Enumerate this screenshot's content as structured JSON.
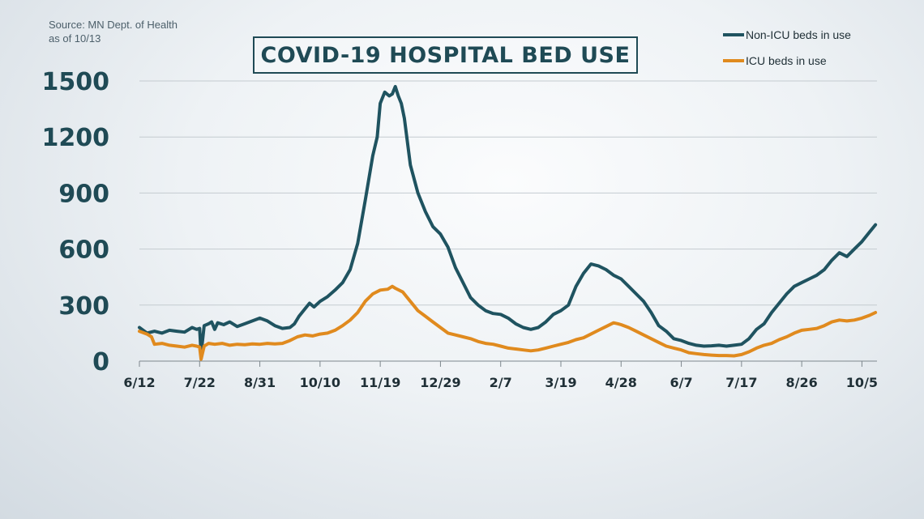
{
  "source": {
    "line1": "Source: MN Dept. of Health",
    "line2": "as of 10/13"
  },
  "title": "COVID-19 HOSPITAL BED USE",
  "colors": {
    "non_icu": "#1f5360",
    "icu": "#e08a1e",
    "title": "#1f4a55",
    "grid": "#c4cbd0"
  },
  "legend": [
    {
      "label": "Non-ICU beds in use",
      "color": "#1f5360"
    },
    {
      "label": "ICU beds in use",
      "color": "#e08a1e"
    }
  ],
  "chart_data": {
    "type": "line",
    "title": "COVID-19 HOSPITAL BED USE",
    "xlabel": "",
    "ylabel": "",
    "ylim": [
      0,
      1500
    ],
    "xlim": [
      0,
      490
    ],
    "yticks": [
      0,
      300,
      600,
      900,
      1200,
      1500
    ],
    "xticks": [
      {
        "x": 0,
        "label": "6/12"
      },
      {
        "x": 40,
        "label": "7/22"
      },
      {
        "x": 80,
        "label": "8/31"
      },
      {
        "x": 120,
        "label": "10/10"
      },
      {
        "x": 160,
        "label": "11/19"
      },
      {
        "x": 200,
        "label": "12/29"
      },
      {
        "x": 240,
        "label": "2/7"
      },
      {
        "x": 280,
        "label": "3/19"
      },
      {
        "x": 320,
        "label": "4/28"
      },
      {
        "x": 360,
        "label": "6/7"
      },
      {
        "x": 400,
        "label": "7/17"
      },
      {
        "x": 440,
        "label": "8/26"
      },
      {
        "x": 480,
        "label": "10/5"
      }
    ],
    "grid": true,
    "legend_position": "top-right",
    "x_note": "x = days since 6/12",
    "series": [
      {
        "name": "Non-ICU beds in use",
        "color": "#1f5360",
        "points": [
          [
            0,
            180
          ],
          [
            5,
            150
          ],
          [
            10,
            160
          ],
          [
            15,
            150
          ],
          [
            20,
            165
          ],
          [
            25,
            160
          ],
          [
            30,
            155
          ],
          [
            35,
            180
          ],
          [
            38,
            170
          ],
          [
            40,
            175
          ],
          [
            41,
            40
          ],
          [
            43,
            190
          ],
          [
            46,
            200
          ],
          [
            48,
            210
          ],
          [
            50,
            170
          ],
          [
            52,
            205
          ],
          [
            56,
            195
          ],
          [
            60,
            210
          ],
          [
            65,
            185
          ],
          [
            70,
            200
          ],
          [
            75,
            215
          ],
          [
            80,
            230
          ],
          [
            85,
            215
          ],
          [
            90,
            190
          ],
          [
            95,
            175
          ],
          [
            100,
            180
          ],
          [
            103,
            200
          ],
          [
            106,
            240
          ],
          [
            110,
            280
          ],
          [
            113,
            310
          ],
          [
            116,
            290
          ],
          [
            120,
            320
          ],
          [
            125,
            345
          ],
          [
            130,
            380
          ],
          [
            135,
            420
          ],
          [
            140,
            490
          ],
          [
            145,
            630
          ],
          [
            150,
            860
          ],
          [
            155,
            1100
          ],
          [
            158,
            1200
          ],
          [
            160,
            1380
          ],
          [
            163,
            1440
          ],
          [
            166,
            1420
          ],
          [
            168,
            1430
          ],
          [
            170,
            1470
          ],
          [
            172,
            1420
          ],
          [
            174,
            1380
          ],
          [
            176,
            1300
          ],
          [
            180,
            1050
          ],
          [
            185,
            900
          ],
          [
            190,
            800
          ],
          [
            195,
            720
          ],
          [
            200,
            680
          ],
          [
            205,
            610
          ],
          [
            210,
            500
          ],
          [
            215,
            420
          ],
          [
            220,
            340
          ],
          [
            225,
            300
          ],
          [
            230,
            270
          ],
          [
            235,
            255
          ],
          [
            240,
            250
          ],
          [
            245,
            230
          ],
          [
            250,
            200
          ],
          [
            255,
            180
          ],
          [
            260,
            170
          ],
          [
            265,
            180
          ],
          [
            270,
            210
          ],
          [
            275,
            250
          ],
          [
            280,
            270
          ],
          [
            285,
            300
          ],
          [
            290,
            400
          ],
          [
            295,
            470
          ],
          [
            300,
            520
          ],
          [
            305,
            510
          ],
          [
            310,
            490
          ],
          [
            315,
            460
          ],
          [
            320,
            440
          ],
          [
            325,
            400
          ],
          [
            330,
            360
          ],
          [
            335,
            320
          ],
          [
            340,
            260
          ],
          [
            345,
            190
          ],
          [
            350,
            160
          ],
          [
            355,
            120
          ],
          [
            360,
            110
          ],
          [
            365,
            95
          ],
          [
            370,
            85
          ],
          [
            375,
            80
          ],
          [
            380,
            82
          ],
          [
            385,
            85
          ],
          [
            390,
            80
          ],
          [
            395,
            85
          ],
          [
            400,
            90
          ],
          [
            405,
            120
          ],
          [
            410,
            170
          ],
          [
            415,
            200
          ],
          [
            420,
            260
          ],
          [
            425,
            310
          ],
          [
            430,
            360
          ],
          [
            435,
            400
          ],
          [
            440,
            420
          ],
          [
            445,
            440
          ],
          [
            450,
            460
          ],
          [
            455,
            490
          ],
          [
            460,
            540
          ],
          [
            465,
            580
          ],
          [
            470,
            560
          ],
          [
            475,
            600
          ],
          [
            480,
            640
          ],
          [
            485,
            690
          ],
          [
            489,
            730
          ]
        ]
      },
      {
        "name": "ICU beds in use",
        "color": "#e08a1e",
        "points": [
          [
            0,
            160
          ],
          [
            5,
            145
          ],
          [
            8,
            130
          ],
          [
            10,
            90
          ],
          [
            15,
            95
          ],
          [
            20,
            85
          ],
          [
            25,
            80
          ],
          [
            30,
            75
          ],
          [
            35,
            85
          ],
          [
            38,
            80
          ],
          [
            40,
            75
          ],
          [
            41,
            10
          ],
          [
            43,
            80
          ],
          [
            46,
            95
          ],
          [
            50,
            90
          ],
          [
            55,
            95
          ],
          [
            60,
            85
          ],
          [
            65,
            90
          ],
          [
            70,
            88
          ],
          [
            75,
            92
          ],
          [
            80,
            90
          ],
          [
            85,
            95
          ],
          [
            90,
            92
          ],
          [
            95,
            95
          ],
          [
            100,
            110
          ],
          [
            105,
            130
          ],
          [
            110,
            140
          ],
          [
            115,
            135
          ],
          [
            120,
            145
          ],
          [
            125,
            150
          ],
          [
            130,
            165
          ],
          [
            135,
            190
          ],
          [
            140,
            220
          ],
          [
            145,
            260
          ],
          [
            150,
            320
          ],
          [
            155,
            360
          ],
          [
            160,
            380
          ],
          [
            165,
            385
          ],
          [
            168,
            400
          ],
          [
            170,
            390
          ],
          [
            175,
            370
          ],
          [
            180,
            320
          ],
          [
            185,
            270
          ],
          [
            190,
            240
          ],
          [
            195,
            210
          ],
          [
            200,
            180
          ],
          [
            205,
            150
          ],
          [
            210,
            140
          ],
          [
            215,
            130
          ],
          [
            220,
            120
          ],
          [
            225,
            105
          ],
          [
            230,
            95
          ],
          [
            235,
            90
          ],
          [
            240,
            80
          ],
          [
            245,
            70
          ],
          [
            250,
            65
          ],
          [
            255,
            60
          ],
          [
            260,
            55
          ],
          [
            265,
            60
          ],
          [
            270,
            70
          ],
          [
            275,
            80
          ],
          [
            280,
            90
          ],
          [
            285,
            100
          ],
          [
            290,
            115
          ],
          [
            295,
            125
          ],
          [
            300,
            145
          ],
          [
            305,
            165
          ],
          [
            310,
            185
          ],
          [
            315,
            205
          ],
          [
            318,
            200
          ],
          [
            320,
            195
          ],
          [
            325,
            180
          ],
          [
            330,
            160
          ],
          [
            335,
            140
          ],
          [
            340,
            120
          ],
          [
            345,
            100
          ],
          [
            350,
            80
          ],
          [
            355,
            70
          ],
          [
            360,
            60
          ],
          [
            365,
            45
          ],
          [
            370,
            40
          ],
          [
            375,
            35
          ],
          [
            380,
            32
          ],
          [
            385,
            30
          ],
          [
            390,
            30
          ],
          [
            395,
            28
          ],
          [
            400,
            35
          ],
          [
            405,
            50
          ],
          [
            410,
            70
          ],
          [
            415,
            85
          ],
          [
            420,
            95
          ],
          [
            425,
            115
          ],
          [
            430,
            130
          ],
          [
            435,
            150
          ],
          [
            440,
            165
          ],
          [
            445,
            170
          ],
          [
            450,
            175
          ],
          [
            455,
            190
          ],
          [
            460,
            210
          ],
          [
            465,
            220
          ],
          [
            470,
            215
          ],
          [
            475,
            220
          ],
          [
            480,
            230
          ],
          [
            485,
            245
          ],
          [
            489,
            260
          ]
        ]
      }
    ]
  }
}
